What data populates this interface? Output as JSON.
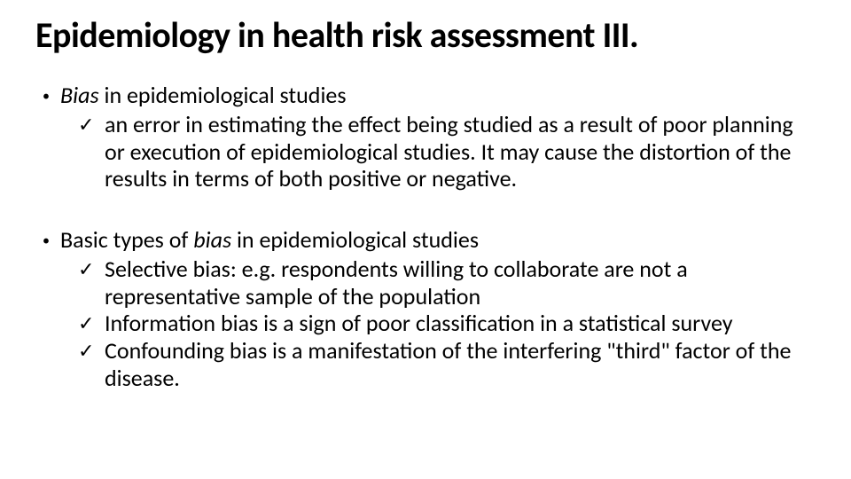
{
  "slide": {
    "title": "Epidemiology in health risk assessment III.",
    "title_fontsize": 40,
    "title_fontweight": 700,
    "body_fontsize": 26,
    "text_color": "#000000",
    "background_color": "#ffffff",
    "section1": {
      "bullet_prefix": "•",
      "lead_italic": "Bias",
      "lead_rest": " in epidemiological studies",
      "check_mark": "✓",
      "sub1": "an error in estimating the effect being studied as a result of poor planning or execution of epidemiological studies. It may cause the distortion of the results in terms of both positive or negative."
    },
    "section2": {
      "bullet_prefix": "•",
      "lead_pre": "Basic types of ",
      "lead_italic": "bias",
      "lead_post": " in epidemiological studies",
      "check_mark": "✓",
      "sub1": "Selective bias: e.g. respondents willing to collaborate are not a representative sample of the population",
      "sub2": "Information bias is a sign of poor classification in a statistical survey",
      "sub3": "Confounding bias is a manifestation of the interfering \"third\" factor of the disease."
    }
  }
}
